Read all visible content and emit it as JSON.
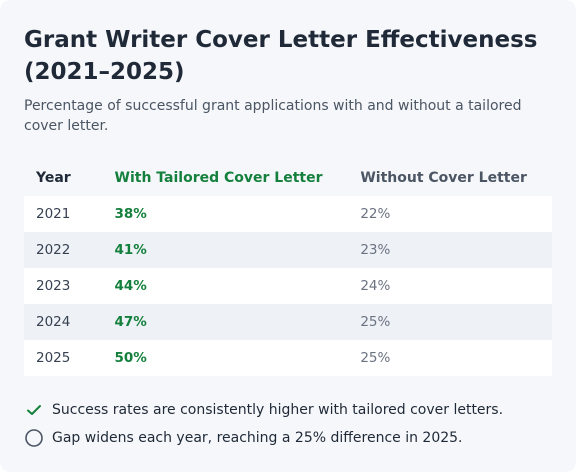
{
  "header": {
    "title": "Grant Writer Cover Letter Effectiveness (2021–2025)",
    "subtitle": "Percentage of successful grant applications with and without a tailored cover letter."
  },
  "chart_data": {
    "type": "table",
    "columns": [
      "Year",
      "With Tailored Cover Letter",
      "Without Cover Letter"
    ],
    "rows": [
      {
        "year": "2021",
        "with": "38%",
        "without": "22%"
      },
      {
        "year": "2022",
        "with": "41%",
        "without": "23%"
      },
      {
        "year": "2023",
        "with": "44%",
        "without": "24%"
      },
      {
        "year": "2024",
        "with": "47%",
        "without": "25%"
      },
      {
        "year": "2025",
        "with": "50%",
        "without": "25%"
      }
    ]
  },
  "notes": [
    {
      "icon": "check-icon",
      "text": "Success rates are consistently higher with tailored cover letters."
    },
    {
      "icon": "circle-icon",
      "text": "Gap widens each year, reaching a 25% difference in 2025."
    }
  ],
  "colors": {
    "accent_green": "#15803d",
    "muted_gray": "#6b7280",
    "row_stripe": "#eef2f7"
  }
}
